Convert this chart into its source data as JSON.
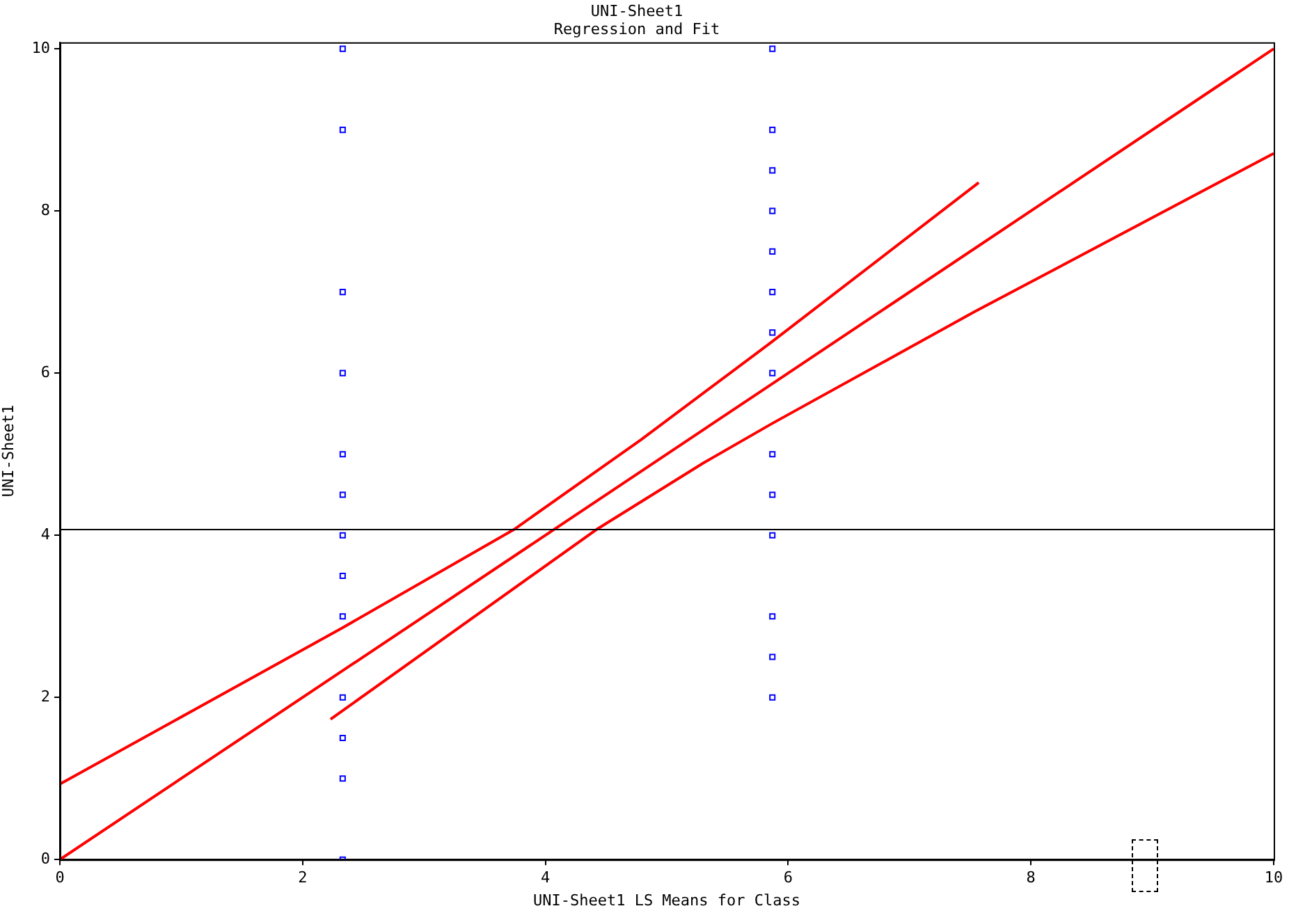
{
  "chart_data": {
    "type": "scatter",
    "title": "UNI-Sheet1",
    "subtitle": "Regression and Fit",
    "xlabel": "UNI-Sheet1 LS Means for Class",
    "ylabel": "UNI-Sheet1",
    "xlim": [
      0,
      10
    ],
    "xticks": [
      0,
      2,
      4,
      6,
      8,
      10
    ],
    "ylim": [
      0,
      10.08
    ],
    "yticks": [
      0,
      2,
      4,
      6,
      8,
      10
    ],
    "grid": false,
    "legend": false,
    "marker": "square",
    "series": [
      {
        "color": "#0000ff",
        "x": [
          2.33,
          2.33,
          2.33,
          2.33,
          2.33,
          2.33,
          2.33,
          2.33,
          2.33,
          2.33,
          2.33,
          2.33,
          2.33,
          5.87,
          5.87,
          5.87,
          5.87,
          5.87,
          5.87,
          5.87,
          5.87,
          5.87,
          5.87,
          5.87,
          5.87,
          5.87,
          5.87
        ],
        "values": [
          10,
          9,
          7,
          6,
          5,
          4.5,
          4,
          3.5,
          3,
          2,
          1.5,
          1,
          0,
          10,
          9,
          8.5,
          8,
          7.5,
          7,
          6.5,
          6,
          5,
          4.5,
          4,
          3,
          2.5,
          2
        ]
      },
      {
        "type": "line",
        "color": "#ff0000",
        "marker": "none",
        "x": [
          0,
          5.87,
          10
        ],
        "values": [
          0,
          5.87,
          10
        ]
      },
      {
        "type": "line",
        "color": "#ff0000",
        "marker": "none",
        "x": [
          0,
          2.33,
          3.74,
          4.79,
          5.87,
          7.57
        ],
        "values": [
          0.93,
          2.86,
          4.07,
          5.18,
          6.39,
          8.35
        ]
      },
      {
        "type": "line",
        "color": "#ff0000",
        "marker": "none",
        "x": [
          2.23,
          4.42,
          5.3,
          5.87,
          7.54,
          10
        ],
        "values": [
          1.73,
          4.07,
          4.89,
          5.38,
          6.76,
          8.71
        ]
      }
    ],
    "ref_lines": [
      {
        "axis": "y",
        "value": 4.07,
        "color": "#000000"
      }
    ]
  }
}
